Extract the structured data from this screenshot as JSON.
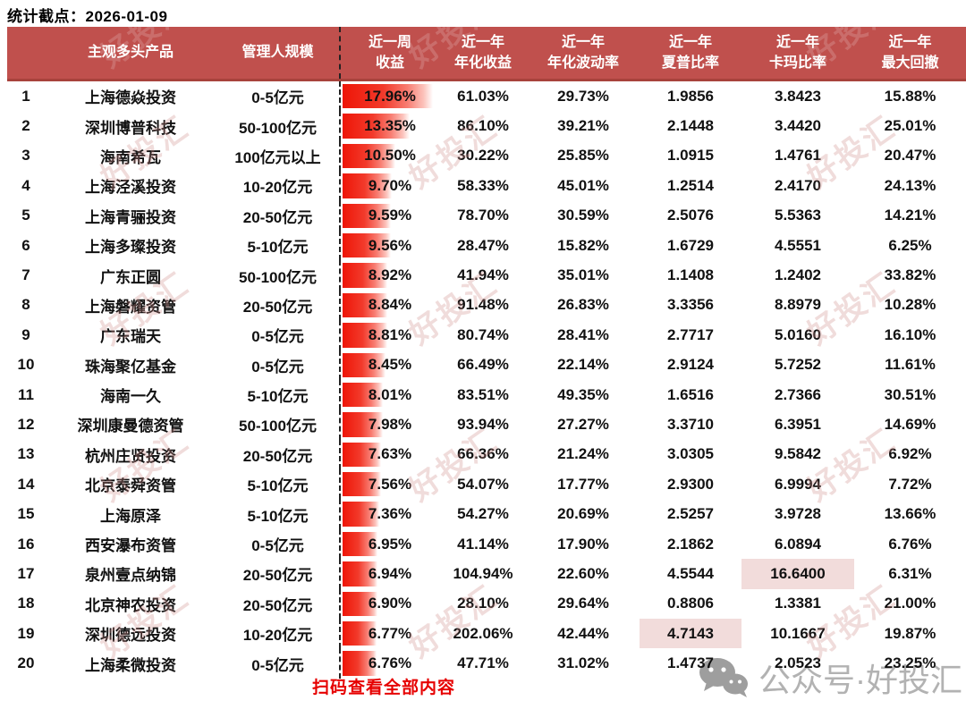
{
  "title": "统计截点：2026-01-09",
  "watermark_text": "好投汇",
  "colors": {
    "header_bg": "#c0504d",
    "header_border": "#a8423c",
    "bar_red": "#ee1507",
    "highlight_cell": "#f2dcdb",
    "scan_text": "#e60000",
    "brand_gray": "#b2b2b2"
  },
  "table": {
    "bar_max_value": 17.96,
    "headers": [
      "",
      "主观多头产品",
      "管理人规模",
      "近一周\n收益",
      "近一年\n年化收益",
      "近一年\n年化波动率",
      "近一年\n夏普比率",
      "近一年\n卡玛比率",
      "近一年\n最大回撤"
    ],
    "rows": [
      {
        "rank": "1",
        "name": "上海德焱投资",
        "scale": "0-5亿元",
        "week": "17.96%",
        "week_value": 17.96,
        "annual": "61.03%",
        "vol": "29.73%",
        "sharpe": "1.9856",
        "calmar": "3.8423",
        "drawdown": "15.88%",
        "highlight": ""
      },
      {
        "rank": "2",
        "name": "深圳博普科技",
        "scale": "50-100亿元",
        "week": "13.35%",
        "week_value": 13.35,
        "annual": "86.10%",
        "vol": "39.21%",
        "sharpe": "2.1448",
        "calmar": "3.4420",
        "drawdown": "25.01%",
        "highlight": ""
      },
      {
        "rank": "3",
        "name": "海南希瓦",
        "scale": "100亿元以上",
        "week": "10.50%",
        "week_value": 10.5,
        "annual": "30.22%",
        "vol": "25.85%",
        "sharpe": "1.0915",
        "calmar": "1.4761",
        "drawdown": "20.47%",
        "highlight": ""
      },
      {
        "rank": "4",
        "name": "上海泾溪投资",
        "scale": "10-20亿元",
        "week": "9.70%",
        "week_value": 9.7,
        "annual": "58.33%",
        "vol": "45.01%",
        "sharpe": "1.2514",
        "calmar": "2.4170",
        "drawdown": "24.13%",
        "highlight": ""
      },
      {
        "rank": "5",
        "name": "上海青骊投资",
        "scale": "20-50亿元",
        "week": "9.59%",
        "week_value": 9.59,
        "annual": "78.70%",
        "vol": "30.59%",
        "sharpe": "2.5076",
        "calmar": "5.5363",
        "drawdown": "14.21%",
        "highlight": ""
      },
      {
        "rank": "6",
        "name": "上海多璨投资",
        "scale": "5-10亿元",
        "week": "9.56%",
        "week_value": 9.56,
        "annual": "28.47%",
        "vol": "15.82%",
        "sharpe": "1.6729",
        "calmar": "4.5551",
        "drawdown": "6.25%",
        "highlight": ""
      },
      {
        "rank": "7",
        "name": "广东正圆",
        "scale": "50-100亿元",
        "week": "8.92%",
        "week_value": 8.92,
        "annual": "41.94%",
        "vol": "35.01%",
        "sharpe": "1.1408",
        "calmar": "1.2402",
        "drawdown": "33.82%",
        "highlight": ""
      },
      {
        "rank": "8",
        "name": "上海磐耀资管",
        "scale": "20-50亿元",
        "week": "8.84%",
        "week_value": 8.84,
        "annual": "91.48%",
        "vol": "26.83%",
        "sharpe": "3.3356",
        "calmar": "8.8979",
        "drawdown": "10.28%",
        "highlight": ""
      },
      {
        "rank": "9",
        "name": "广东瑞天",
        "scale": "0-5亿元",
        "week": "8.81%",
        "week_value": 8.81,
        "annual": "80.74%",
        "vol": "28.41%",
        "sharpe": "2.7717",
        "calmar": "5.0160",
        "drawdown": "16.10%",
        "highlight": ""
      },
      {
        "rank": "10",
        "name": "珠海聚亿基金",
        "scale": "0-5亿元",
        "week": "8.45%",
        "week_value": 8.45,
        "annual": "66.49%",
        "vol": "22.14%",
        "sharpe": "2.9124",
        "calmar": "5.7252",
        "drawdown": "11.61%",
        "highlight": ""
      },
      {
        "rank": "11",
        "name": "海南一久",
        "scale": "5-10亿元",
        "week": "8.01%",
        "week_value": 8.01,
        "annual": "83.51%",
        "vol": "49.35%",
        "sharpe": "1.6516",
        "calmar": "2.7366",
        "drawdown": "30.51%",
        "highlight": ""
      },
      {
        "rank": "12",
        "name": "深圳康曼德资管",
        "scale": "50-100亿元",
        "week": "7.98%",
        "week_value": 7.98,
        "annual": "93.94%",
        "vol": "27.27%",
        "sharpe": "3.3710",
        "calmar": "6.3951",
        "drawdown": "14.69%",
        "highlight": ""
      },
      {
        "rank": "13",
        "name": "杭州庄贤投资",
        "scale": "20-50亿元",
        "week": "7.63%",
        "week_value": 7.63,
        "annual": "66.36%",
        "vol": "21.24%",
        "sharpe": "3.0305",
        "calmar": "9.5842",
        "drawdown": "6.92%",
        "highlight": ""
      },
      {
        "rank": "14",
        "name": "北京泰舜资管",
        "scale": "5-10亿元",
        "week": "7.56%",
        "week_value": 7.56,
        "annual": "54.07%",
        "vol": "17.77%",
        "sharpe": "2.9300",
        "calmar": "6.9994",
        "drawdown": "7.72%",
        "highlight": ""
      },
      {
        "rank": "15",
        "name": "上海原泽",
        "scale": "5-10亿元",
        "week": "7.36%",
        "week_value": 7.36,
        "annual": "54.27%",
        "vol": "20.69%",
        "sharpe": "2.5257",
        "calmar": "3.9728",
        "drawdown": "13.66%",
        "highlight": ""
      },
      {
        "rank": "16",
        "name": "西安瀑布资管",
        "scale": "0-5亿元",
        "week": "6.95%",
        "week_value": 6.95,
        "annual": "41.14%",
        "vol": "17.90%",
        "sharpe": "2.1862",
        "calmar": "6.0894",
        "drawdown": "6.76%",
        "highlight": ""
      },
      {
        "rank": "17",
        "name": "泉州壹点纳锦",
        "scale": "20-50亿元",
        "week": "6.94%",
        "week_value": 6.94,
        "annual": "104.94%",
        "vol": "22.60%",
        "sharpe": "4.5544",
        "calmar": "16.6400",
        "drawdown": "6.31%",
        "highlight": "calmar"
      },
      {
        "rank": "18",
        "name": "北京神农投资",
        "scale": "20-50亿元",
        "week": "6.90%",
        "week_value": 6.9,
        "annual": "28.10%",
        "vol": "29.64%",
        "sharpe": "0.8806",
        "calmar": "1.3381",
        "drawdown": "21.00%",
        "highlight": ""
      },
      {
        "rank": "19",
        "name": "深圳德远投资",
        "scale": "10-20亿元",
        "week": "6.77%",
        "week_value": 6.77,
        "annual": "202.06%",
        "vol": "42.44%",
        "sharpe": "4.7143",
        "calmar": "10.1667",
        "drawdown": "19.87%",
        "highlight": "sharpe"
      },
      {
        "rank": "20",
        "name": "上海柔微投资",
        "scale": "0-5亿元",
        "week": "6.76%",
        "week_value": 6.76,
        "annual": "47.71%",
        "vol": "31.02%",
        "sharpe": "1.4737",
        "calmar": "2.0523",
        "drawdown": "23.25%",
        "highlight": ""
      }
    ]
  },
  "footer": {
    "scan_text": "扫码查看全部内容",
    "wechat_text": "公众号·好投汇"
  }
}
